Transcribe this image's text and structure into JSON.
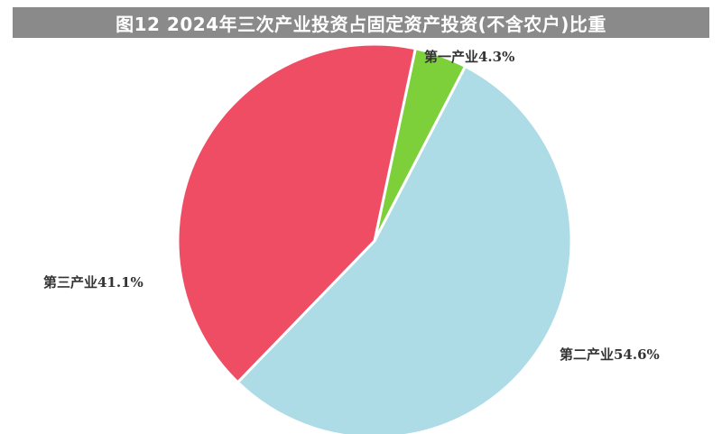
{
  "title": "图12  2024年三次产业投资占固定资产投资(不含农户)比重",
  "chart_data": {
    "type": "pie",
    "slices": [
      {
        "label": "第一产业4.3%",
        "value": 4.3,
        "color": "#7ED03B"
      },
      {
        "label": "第二产业54.6%",
        "value": 54.6,
        "color": "#ADDBE6"
      },
      {
        "label": "第三产业41.1%",
        "value": 41.1,
        "color": "#EE4D63"
      }
    ],
    "start_angle_deg": 12,
    "direction": "clockwise"
  }
}
